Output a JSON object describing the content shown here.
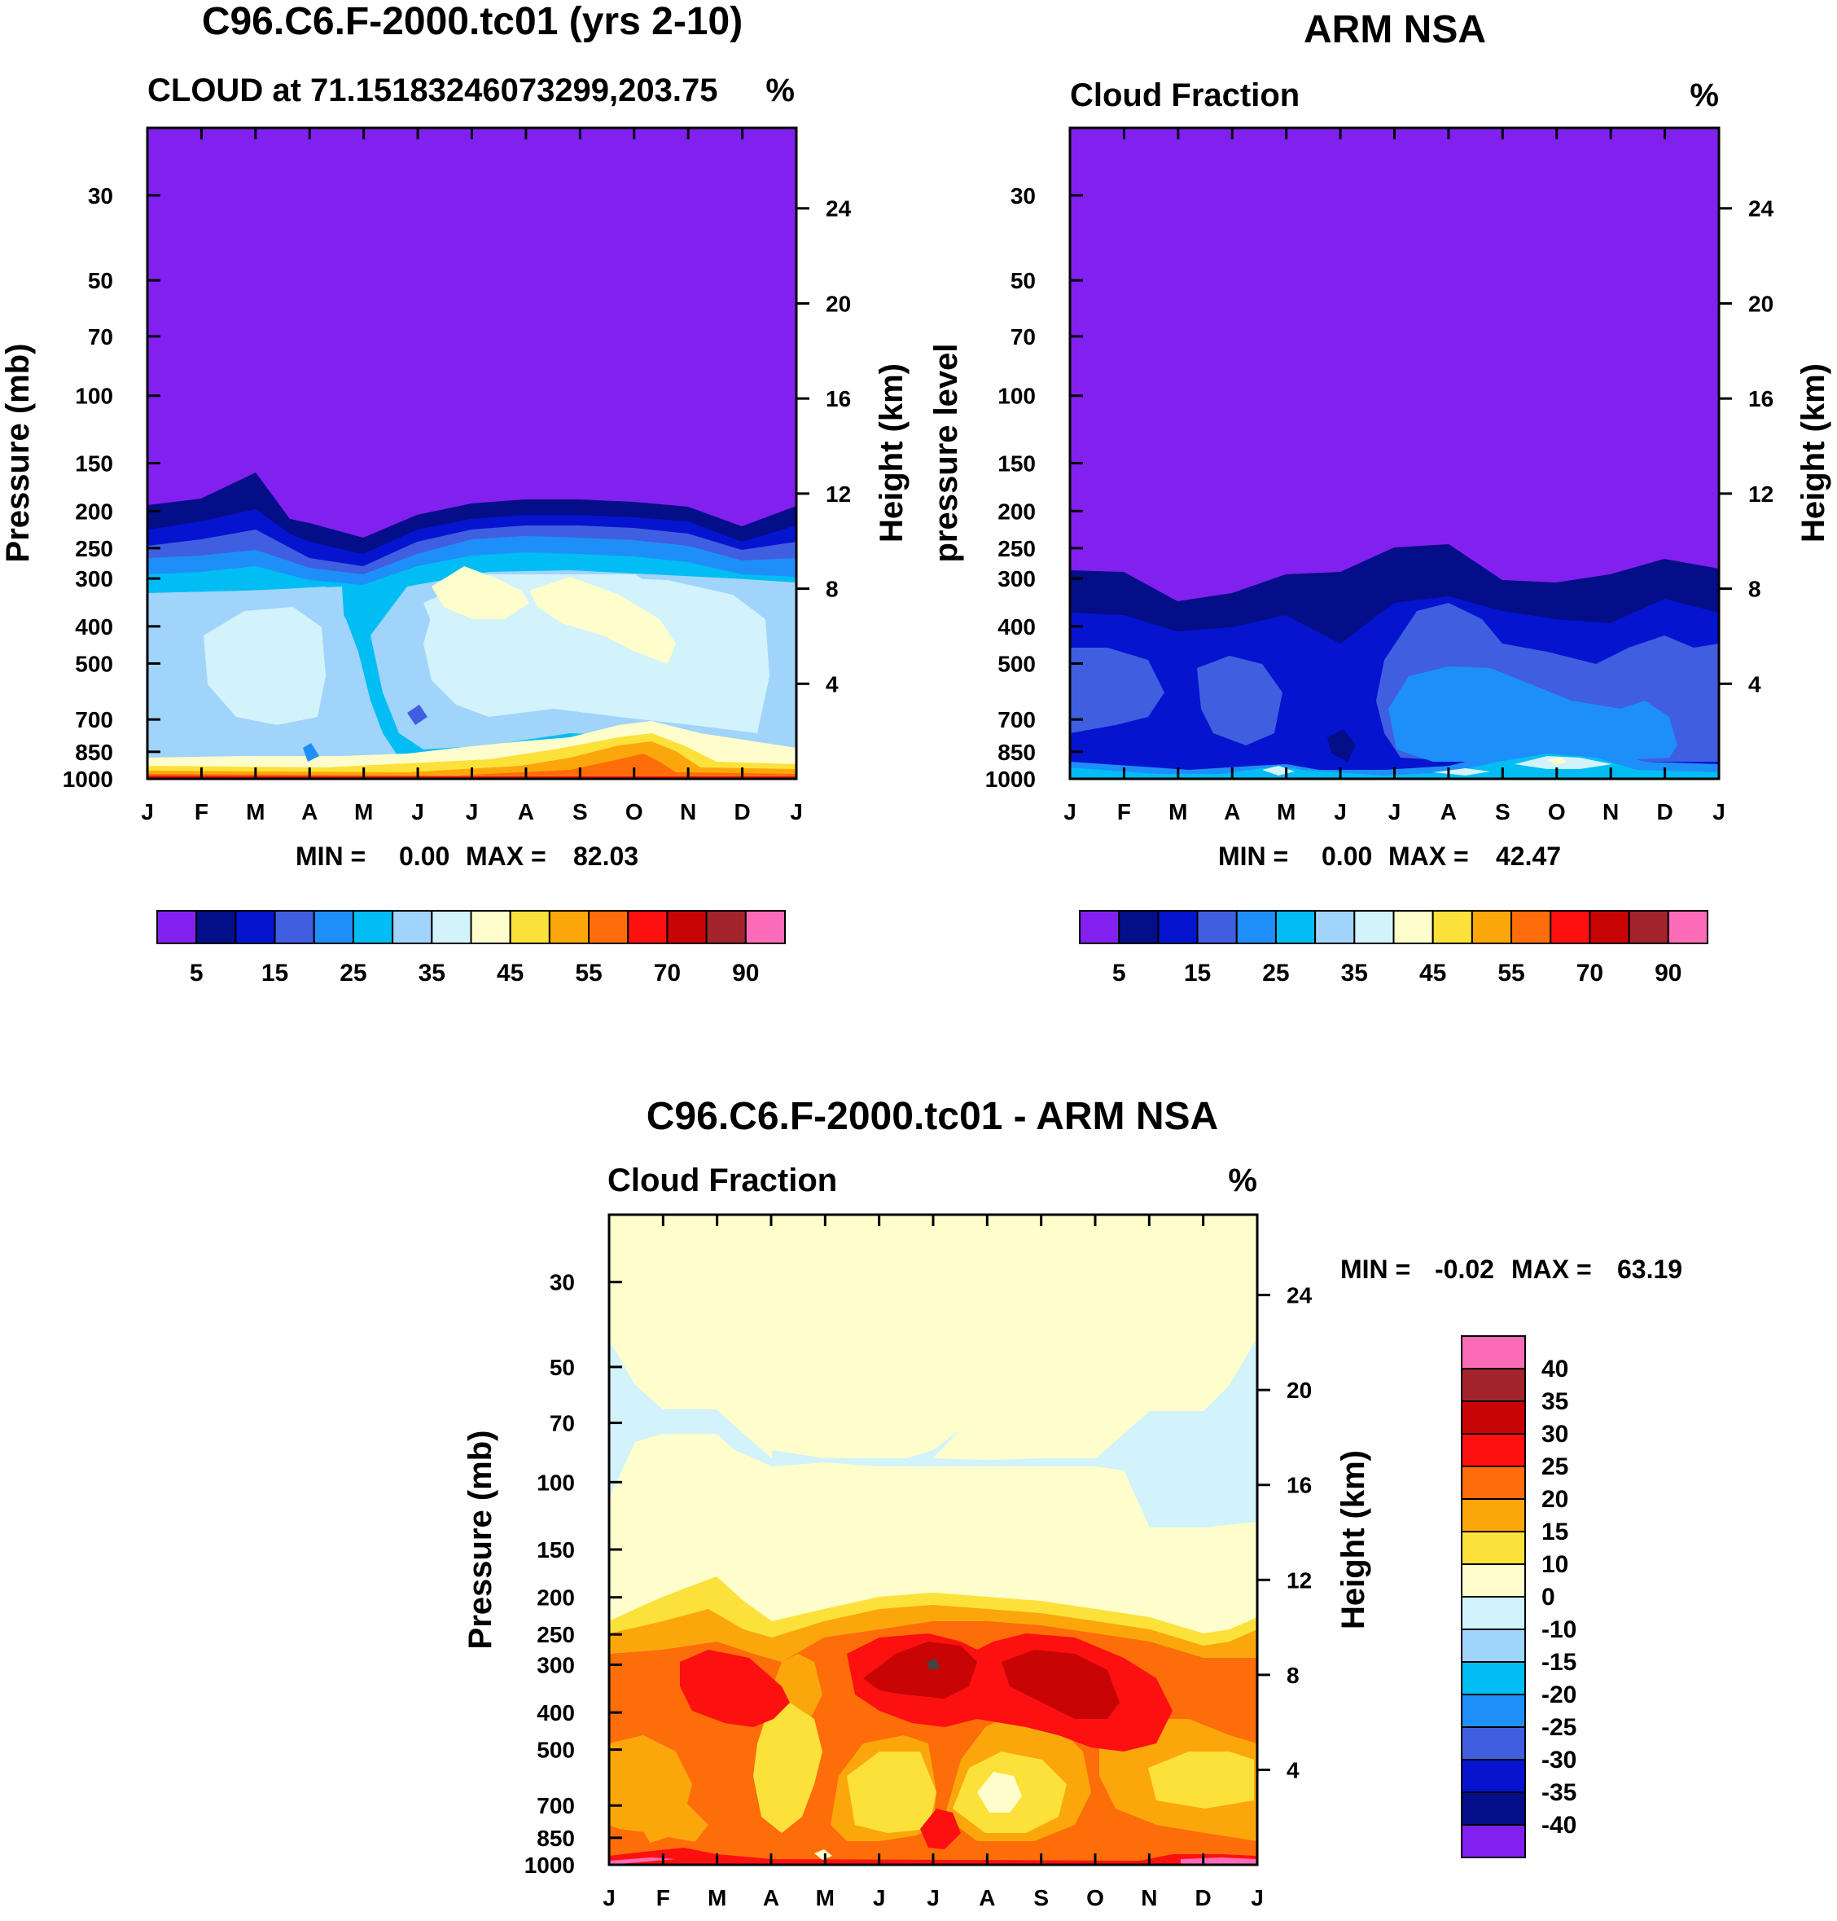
{
  "chart_data": [
    {
      "type": "heatmap",
      "title": "C96.C6.F-2000.tc01 (yrs 2-10)",
      "subtitle_left": "CLOUD at 71.15183246073299,203.75",
      "subtitle_right": "%",
      "ylabel": "Pressure (mb)",
      "ylabel_right": "Height (km)",
      "x_ticks": [
        "J",
        "F",
        "M",
        "A",
        "M",
        "J",
        "J",
        "A",
        "S",
        "O",
        "N",
        "D",
        "J"
      ],
      "y_ticks": [
        30,
        50,
        70,
        100,
        150,
        200,
        250,
        300,
        400,
        500,
        700,
        850,
        1000
      ],
      "y_ticks_right": [
        24,
        20,
        16,
        12,
        8,
        4
      ],
      "ylim": [
        20,
        1000
      ],
      "stats": {
        "min_label": "MIN =",
        "min": "0.00",
        "max_label": "MAX =",
        "max": "82.03"
      },
      "colorbar": {
        "orientation": "horizontal",
        "colors": [
          "#8220ef",
          "#030e88",
          "#0514cf",
          "#405ee0",
          "#1e8ff8",
          "#01bdf4",
          "#a1d4fa",
          "#d2f2fc",
          "#fefecc",
          "#fde13b",
          "#fba70c",
          "#fd6d0a",
          "#fd1010",
          "#c90404",
          "#a3242a",
          "#fc6bb7"
        ],
        "labels": [
          "5",
          "15",
          "25",
          "35",
          "45",
          "55",
          "70",
          "90"
        ]
      }
    },
    {
      "type": "heatmap",
      "title": "ARM NSA",
      "subtitle_left": "Cloud Fraction",
      "subtitle_right": "%",
      "ylabel": "pressure level",
      "ylabel_right": "Height (km)",
      "x_ticks": [
        "J",
        "F",
        "M",
        "A",
        "M",
        "J",
        "J",
        "A",
        "S",
        "O",
        "N",
        "D",
        "J"
      ],
      "y_ticks": [
        30,
        50,
        70,
        100,
        150,
        200,
        250,
        300,
        400,
        500,
        700,
        850,
        1000
      ],
      "y_ticks_right": [
        24,
        20,
        16,
        12,
        8,
        4
      ],
      "ylim": [
        20,
        1000
      ],
      "stats": {
        "min_label": "MIN =",
        "min": "0.00",
        "max_label": "MAX =",
        "max": "42.47"
      },
      "colorbar": {
        "orientation": "horizontal",
        "colors": [
          "#8220ef",
          "#030e88",
          "#0514cf",
          "#405ee0",
          "#1e8ff8",
          "#01bdf4",
          "#a1d4fa",
          "#d2f2fc",
          "#fefecc",
          "#fde13b",
          "#fba70c",
          "#fd6d0a",
          "#fd1010",
          "#c90404",
          "#a3242a",
          "#fc6bb7"
        ],
        "labels": [
          "5",
          "15",
          "25",
          "35",
          "45",
          "55",
          "70",
          "90"
        ]
      }
    },
    {
      "type": "heatmap",
      "title": "C96.C6.F-2000.tc01 - ARM NSA",
      "subtitle_left": "Cloud Fraction",
      "subtitle_right": "%",
      "ylabel": "Pressure (mb)",
      "ylabel_right": "Height (km)",
      "x_ticks": [
        "J",
        "F",
        "M",
        "A",
        "M",
        "J",
        "J",
        "A",
        "S",
        "O",
        "N",
        "D",
        "J"
      ],
      "y_ticks": [
        30,
        50,
        70,
        100,
        150,
        200,
        250,
        300,
        400,
        500,
        700,
        850,
        1000
      ],
      "y_ticks_right": [
        24,
        20,
        16,
        12,
        8,
        4
      ],
      "ylim": [
        20,
        1000
      ],
      "stats": {
        "min_label": "MIN =",
        "min": "-0.02",
        "max_label": "MAX =",
        "max": "63.19"
      },
      "colorbar": {
        "orientation": "vertical",
        "colors": [
          "#8220ef",
          "#030e88",
          "#0514cf",
          "#405ee0",
          "#1e8ff8",
          "#01bdf4",
          "#a1d4fa",
          "#d2f2fc",
          "#fefecc",
          "#fde13b",
          "#fba70c",
          "#fd6d0a",
          "#fd1010",
          "#c90404",
          "#a3242a",
          "#fc6bb7"
        ],
        "labels": [
          "-40",
          "-35",
          "-30",
          "-25",
          "-20",
          "-15",
          "-10",
          "0",
          "10",
          "15",
          "20",
          "25",
          "30",
          "35",
          "40"
        ]
      }
    }
  ]
}
